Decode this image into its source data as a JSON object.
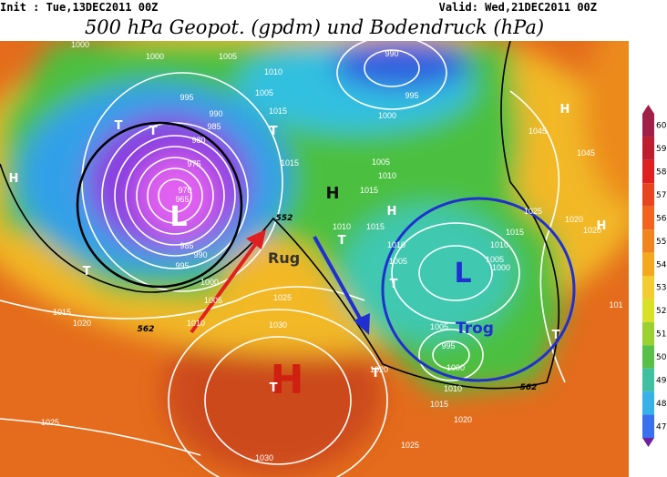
{
  "header": {
    "init": "Init : Tue,13DEC2011 00Z",
    "valid": "Valid: Wed,21DEC2011 00Z",
    "title": "500 hPa Geopot. (gpdm) und Bodendruck (hPa)"
  },
  "map": {
    "pressure_labels": [
      "1000",
      "1000",
      "1005",
      "1010",
      "995",
      "990",
      "985",
      "980",
      "975",
      "970",
      "965",
      "985",
      "990",
      "995",
      "1005",
      "1015",
      "1015",
      "990",
      "995",
      "1000",
      "1005",
      "1010",
      "1015",
      "1010",
      "1015",
      "1010",
      "1005",
      "1010",
      "1005",
      "1000",
      "1015",
      "1025",
      "1020",
      "1020",
      "1045",
      "1045",
      "1025",
      "1030",
      "1000",
      "1005",
      "1010",
      "1015",
      "1020",
      "1005",
      "995",
      "1000",
      "1020",
      "1010",
      "1015",
      "1020",
      "1025",
      "1025",
      "1030",
      "101"
    ],
    "contour_labels": [
      "552",
      "562",
      "562"
    ],
    "markers": [
      "T",
      "T",
      "T",
      "T",
      "T",
      "T",
      "T",
      "T",
      "H",
      "H",
      "H",
      "H",
      "T"
    ],
    "annotations": {
      "high": "H",
      "low_west": "L",
      "ridge_high": "H",
      "low_east": "L",
      "ridge": "Rug",
      "trough": "Trog"
    }
  },
  "colorbar": {
    "labels": [
      60,
      59,
      58,
      57,
      56,
      55,
      54,
      53,
      52,
      51,
      50,
      49,
      48,
      47
    ]
  }
}
